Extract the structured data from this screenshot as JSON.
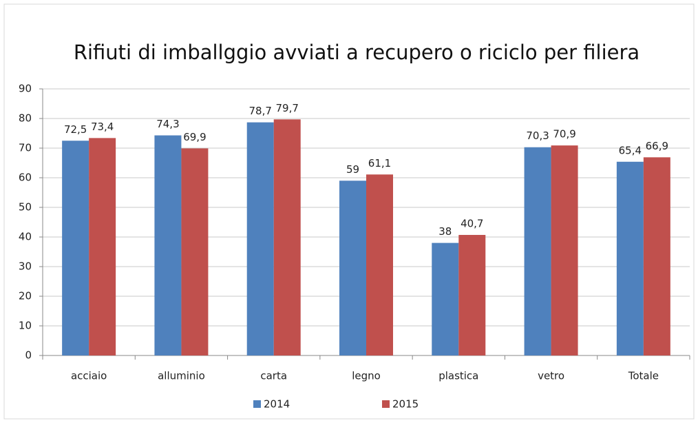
{
  "chart_data": {
    "type": "bar",
    "title": "Rifiuti di imballggio avviati a recupero o riciclo per filiera",
    "categories": [
      "acciaio",
      "alluminio",
      "carta",
      "legno",
      "plastica",
      "vetro",
      "Totale"
    ],
    "series": [
      {
        "name": "2014",
        "color": "#4f81bd",
        "values": [
          72.5,
          74.3,
          78.7,
          59,
          38,
          70.3,
          65.4
        ],
        "value_labels": [
          "72,5",
          "74,3",
          "78,7",
          "59",
          "38",
          "70,3",
          "65,4"
        ]
      },
      {
        "name": "2015",
        "color": "#c0504d",
        "values": [
          73.4,
          69.9,
          79.7,
          61.1,
          40.7,
          70.9,
          66.9
        ],
        "value_labels": [
          "73,4",
          "69,9",
          "79,7",
          "61,1",
          "40,7",
          "70,9",
          "66,9"
        ]
      }
    ],
    "ylim": [
      0,
      90
    ],
    "yticks": [
      0,
      10,
      20,
      30,
      40,
      50,
      60,
      70,
      80,
      90
    ],
    "grid": true,
    "legend": "bottom"
  }
}
